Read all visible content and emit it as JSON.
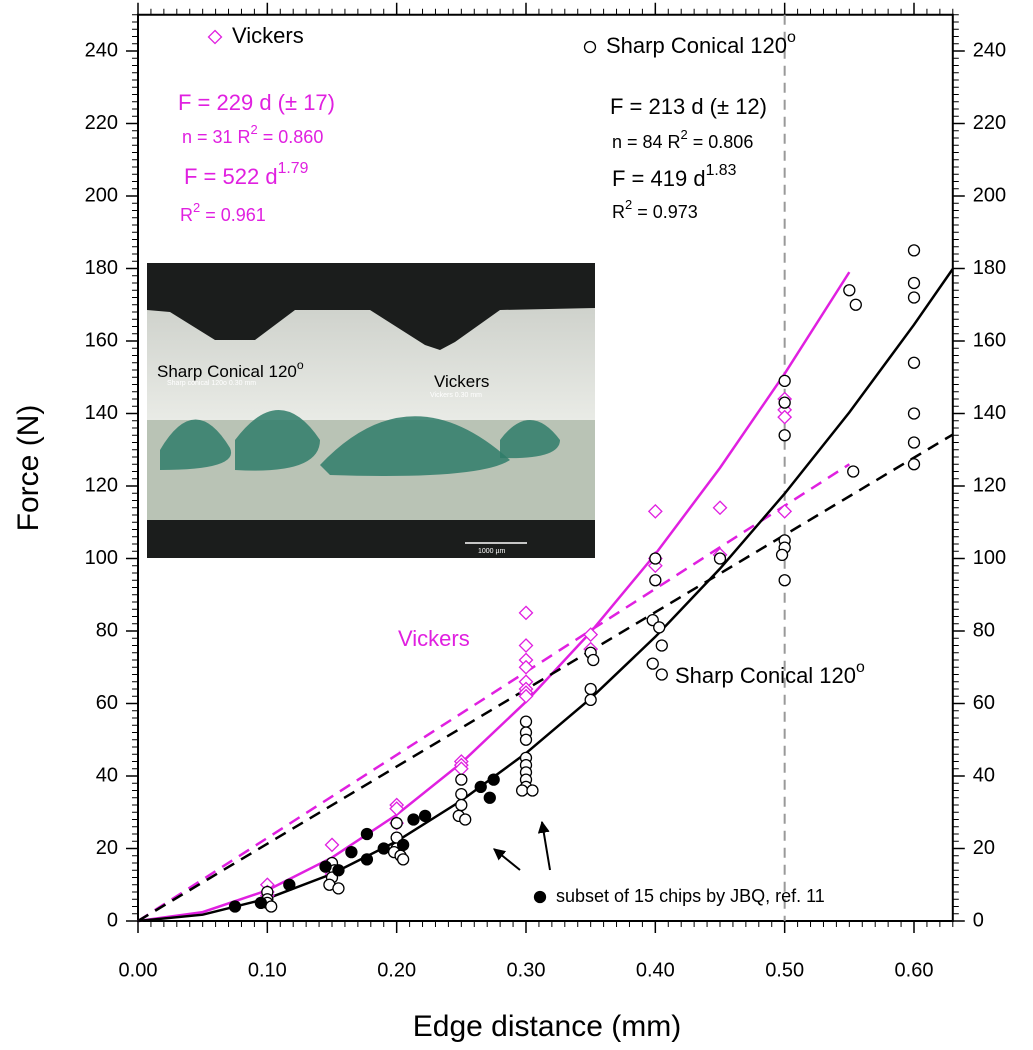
{
  "chart_data": {
    "type": "scatter",
    "x_label": "Edge distance (mm)",
    "y_label": "Force (N)",
    "xlim": [
      0,
      0.63
    ],
    "ylim": [
      0,
      250
    ],
    "xticks": [
      {
        "value": 0,
        "label": "0.00"
      },
      {
        "value": 0.1,
        "label": "0.10"
      },
      {
        "value": 0.2,
        "label": "0.20"
      },
      {
        "value": 0.3,
        "label": "0.30"
      },
      {
        "value": 0.4,
        "label": "0.40"
      },
      {
        "value": 0.5,
        "label": "0.50"
      },
      {
        "value": 0.6,
        "label": "0.60"
      }
    ],
    "yticks": [
      0,
      20,
      40,
      60,
      80,
      100,
      120,
      140,
      160,
      180,
      200,
      220,
      240
    ],
    "series": [
      {
        "name": "Vickers",
        "color": "#e020e0",
        "marker": "diamond",
        "filled": false,
        "x": [
          0.1,
          0.1,
          0.1,
          0.15,
          0.15,
          0.15,
          0.2,
          0.2,
          0.2,
          0.25,
          0.25,
          0.25,
          0.3,
          0.3,
          0.3,
          0.3,
          0.3,
          0.3,
          0.3,
          0.3,
          0.35,
          0.35,
          0.4,
          0.4,
          0.4,
          0.45,
          0.45,
          0.5,
          0.5,
          0.5,
          0.5
        ],
        "values": [
          10,
          8,
          7,
          21,
          15,
          13,
          32,
          31,
          27,
          44,
          43,
          42,
          85,
          76,
          72,
          70,
          66,
          64,
          63,
          62,
          79,
          75,
          113,
          100,
          98,
          114,
          101,
          144,
          141,
          139,
          113
        ]
      },
      {
        "name": "Sharp Conical 120",
        "name_sup": "o",
        "color": "#000000",
        "marker": "circle",
        "filled": false,
        "x": [
          0.1,
          0.1,
          0.1,
          0.103,
          0.15,
          0.152,
          0.15,
          0.148,
          0.155,
          0.2,
          0.2,
          0.2,
          0.198,
          0.203,
          0.205,
          0.25,
          0.25,
          0.25,
          0.248,
          0.253,
          0.3,
          0.3,
          0.3,
          0.3,
          0.3,
          0.3,
          0.3,
          0.3,
          0.297,
          0.305,
          0.35,
          0.352,
          0.35,
          0.35,
          0.4,
          0.4,
          0.398,
          0.403,
          0.405,
          0.398,
          0.405,
          0.45,
          0.5,
          0.5,
          0.5,
          0.5,
          0.5,
          0.498,
          0.5,
          0.55,
          0.555,
          0.553,
          0.6,
          0.6,
          0.6,
          0.6,
          0.6,
          0.6,
          0.6
        ],
        "values": [
          8,
          6,
          5,
          4,
          16,
          14,
          12,
          10,
          9,
          27,
          23,
          20,
          19,
          18,
          17,
          39,
          35,
          32,
          29,
          28,
          55,
          52,
          50,
          45,
          43,
          41,
          39,
          37,
          36,
          36,
          74,
          72,
          64,
          61,
          100,
          94,
          83,
          81,
          76,
          71,
          68,
          100,
          149,
          143,
          134,
          105,
          103,
          101,
          94,
          174,
          170,
          124,
          185,
          176,
          172,
          154,
          140,
          132,
          126
        ]
      },
      {
        "name": "subset of 15 chips by JBQ, ref. 11",
        "color": "#000000",
        "marker": "circle",
        "filled": true,
        "x": [
          0.075,
          0.095,
          0.117,
          0.145,
          0.155,
          0.165,
          0.177,
          0.177,
          0.19,
          0.205,
          0.213,
          0.222,
          0.265,
          0.272,
          0.275
        ],
        "values": [
          4,
          5,
          10,
          15,
          14,
          19,
          17,
          24,
          20,
          21,
          28,
          29,
          37,
          34,
          39
        ]
      }
    ],
    "fits": [
      {
        "color": "#e020e0",
        "dashed": false,
        "x": [
          0,
          0.05,
          0.1,
          0.15,
          0.2,
          0.25,
          0.3,
          0.35,
          0.4,
          0.45,
          0.5,
          0.55
        ],
        "values": [
          0,
          2.45,
          8.47,
          17.5,
          29.3,
          43.6,
          60.5,
          79.7,
          101.2,
          125.0,
          151.0,
          179.0
        ]
      },
      {
        "color": "#e020e0",
        "dashed": true,
        "x": [
          0,
          0.55
        ],
        "values": [
          0,
          126
        ]
      },
      {
        "color": "#000000",
        "dashed": false,
        "x": [
          0,
          0.05,
          0.1,
          0.15,
          0.2,
          0.25,
          0.3,
          0.35,
          0.4,
          0.45,
          0.5,
          0.55,
          0.6,
          0.63
        ],
        "values": [
          0,
          1.74,
          6.2,
          13.0,
          22.0,
          33.2,
          46.3,
          61.4,
          78.4,
          97.2,
          117.9,
          140.3,
          164.5,
          179.9
        ]
      },
      {
        "color": "#000000",
        "dashed": true,
        "x": [
          0,
          0.63
        ],
        "values": [
          0,
          134.2
        ]
      }
    ],
    "vline": {
      "x": 0.5,
      "color": "#999999"
    },
    "annotations": [
      {
        "color": "#e020e0",
        "size": 22,
        "text": "F = 229 d  (± 17)"
      },
      {
        "color": "#e020e0",
        "size": 18,
        "text": "n = 31   R",
        "sup": "2",
        "after": " = 0.860"
      },
      {
        "color": "#e020e0",
        "size": 22,
        "text": "F = 522 d",
        "sup": "1.79"
      },
      {
        "color": "#e020e0",
        "size": 18,
        "text": "R",
        "sup": "2",
        "after": " = 0.961"
      },
      {
        "color": "#000000",
        "size": 22,
        "text": "F = 213 d  (± 12)"
      },
      {
        "color": "#000000",
        "size": 18,
        "text": "n = 84   R",
        "sup": "2",
        "after": " = 0.806"
      },
      {
        "color": "#000000",
        "size": 22,
        "text": "F  = 419 d",
        "sup": "1.83"
      },
      {
        "color": "#000000",
        "size": 18,
        "text": "R",
        "sup": "2",
        "after": " = 0.973"
      },
      {
        "color": "#e020e0",
        "size": 22,
        "text": "Vickers"
      },
      {
        "color": "#000000",
        "size": 22,
        "text": "Sharp Conical 120",
        "sup": "o"
      }
    ],
    "inset": {
      "labels": [
        {
          "size": 17,
          "color": "#000000",
          "text": "Sharp Conical 120",
          "sup": "o"
        },
        {
          "size": 17,
          "color": "#000000",
          "text": "Vickers"
        },
        {
          "size": 7,
          "color": "#ffffff",
          "text": "Sharp conical 120o  0.30 mm"
        },
        {
          "size": 7,
          "color": "#ffffff",
          "text": "Vickers  0.30 mm"
        },
        {
          "size": 7,
          "color": "#ffffff",
          "text": "1000 µm"
        }
      ]
    }
  }
}
